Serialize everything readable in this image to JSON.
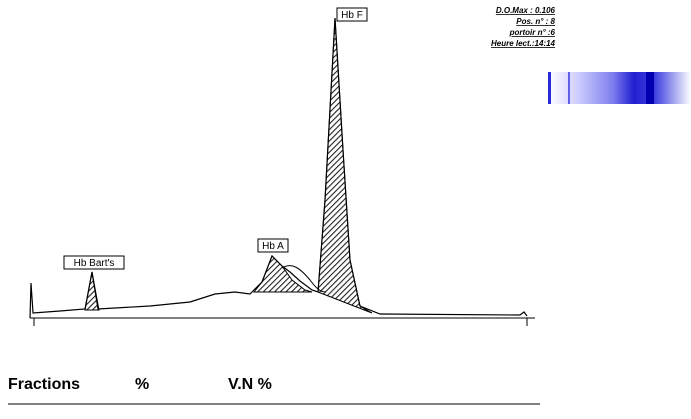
{
  "header": {
    "info": [
      "D.O.Max : 0.106",
      "Pos. n° : 8",
      "portoir n° :6",
      "Heure lect.:14:14"
    ]
  },
  "peaks": [
    {
      "label": "Hb Bart's"
    },
    {
      "label": "Hb A"
    },
    {
      "label": "Hb F"
    }
  ],
  "table": {
    "columns": [
      "Fractions",
      "%",
      "V.N %"
    ]
  }
}
